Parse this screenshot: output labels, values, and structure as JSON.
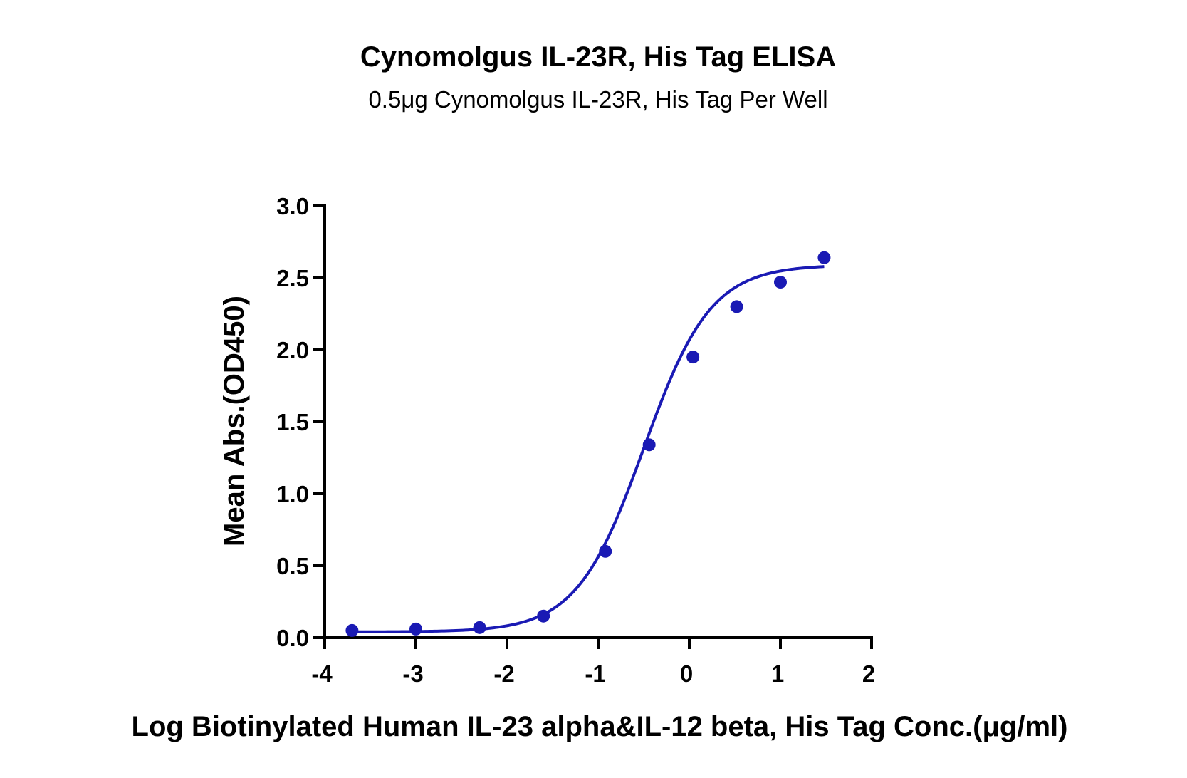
{
  "chart_data": {
    "type": "scatter",
    "title": "Cynomolgus IL-23R, His Tag ELISA",
    "subtitle": "0.5μg Cynomolgus IL-23R, His Tag Per Well",
    "xlabel": "Log Biotinylated Human IL-23 alpha&IL-12 beta, His Tag Conc.(μg/ml)",
    "ylabel": "Mean Abs.(OD450)",
    "xlim": [
      -4,
      2
    ],
    "ylim": [
      0,
      3.0
    ],
    "x_ticks": [
      "-4",
      "-3",
      "-2",
      "-1",
      "0",
      "1",
      "2"
    ],
    "y_ticks": [
      "0.0",
      "0.5",
      "1.0",
      "1.5",
      "2.0",
      "2.5",
      "3.0"
    ],
    "grid": false,
    "color": "#1a1ab4",
    "series": [
      {
        "x": [
          -3.7,
          -3.0,
          -2.3,
          -1.6,
          -0.92,
          -0.44,
          0.04,
          0.52,
          1.0,
          1.48
        ],
        "y": [
          0.05,
          0.06,
          0.07,
          0.15,
          0.6,
          1.34,
          1.95,
          2.3,
          2.47,
          2.64
        ]
      }
    ],
    "fit": {
      "model": "4PL",
      "bottom": 0.04,
      "top": 2.59,
      "log_ec50": -0.5,
      "hill": 1.18,
      "x_range": [
        -3.7,
        1.48
      ]
    }
  }
}
